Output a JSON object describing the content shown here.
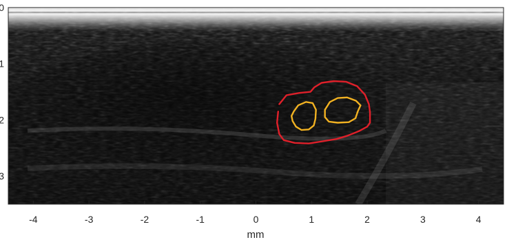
{
  "figure": {
    "x_axis": {
      "label": "mm",
      "ticks": [
        "-4",
        "-3",
        "-2",
        "-1",
        "0",
        "1",
        "2",
        "3",
        "4"
      ],
      "range": [
        -4.45,
        4.45
      ]
    },
    "y_axis": {
      "ticks": [
        "0",
        "1",
        "2",
        "3"
      ],
      "range": [
        0,
        3.5
      ]
    },
    "outer_contour": {
      "color": "#e0202a",
      "points": [
        [
          0.42,
          1.72
        ],
        [
          0.55,
          1.56
        ],
        [
          0.78,
          1.52
        ],
        [
          0.98,
          1.5
        ],
        [
          1.05,
          1.42
        ],
        [
          1.18,
          1.34
        ],
        [
          1.4,
          1.31
        ],
        [
          1.62,
          1.32
        ],
        [
          1.82,
          1.4
        ],
        [
          1.96,
          1.55
        ],
        [
          2.03,
          1.72
        ],
        [
          2.05,
          1.86
        ],
        [
          2.05,
          2.05
        ],
        [
          2.0,
          2.12
        ],
        [
          1.85,
          2.2
        ],
        [
          1.65,
          2.28
        ],
        [
          1.45,
          2.34
        ],
        [
          1.2,
          2.38
        ],
        [
          0.95,
          2.42
        ],
        [
          0.7,
          2.41
        ],
        [
          0.5,
          2.36
        ],
        [
          0.42,
          2.25
        ],
        [
          0.38,
          2.05
        ],
        [
          0.4,
          1.85
        ]
      ]
    },
    "inner_contours": [
      {
        "color": "#f2b222",
        "points": [
          [
            0.68,
            1.85
          ],
          [
            0.76,
            1.74
          ],
          [
            0.9,
            1.68
          ],
          [
            1.02,
            1.7
          ],
          [
            1.08,
            1.82
          ],
          [
            1.07,
            1.98
          ],
          [
            1.04,
            2.1
          ],
          [
            0.95,
            2.17
          ],
          [
            0.82,
            2.18
          ],
          [
            0.72,
            2.12
          ],
          [
            0.66,
            2.02
          ],
          [
            0.64,
            1.93
          ]
        ]
      },
      {
        "color": "#f2b222",
        "points": [
          [
            1.24,
            1.82
          ],
          [
            1.33,
            1.68
          ],
          [
            1.47,
            1.61
          ],
          [
            1.64,
            1.6
          ],
          [
            1.8,
            1.66
          ],
          [
            1.88,
            1.74
          ],
          [
            1.83,
            1.85
          ],
          [
            1.79,
            1.97
          ],
          [
            1.67,
            2.04
          ],
          [
            1.47,
            2.05
          ],
          [
            1.31,
            2.03
          ],
          [
            1.24,
            1.95
          ]
        ]
      }
    ]
  }
}
